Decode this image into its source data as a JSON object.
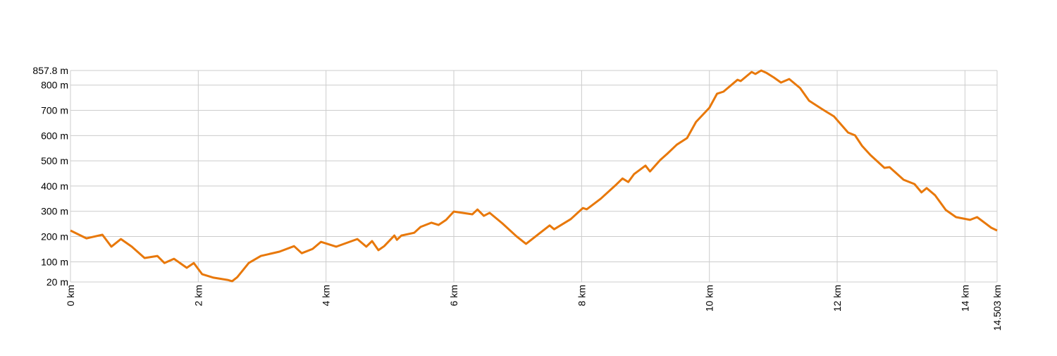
{
  "chart_data": {
    "type": "line",
    "title": "",
    "xlabel": "",
    "ylabel": "",
    "x_unit": "km",
    "y_unit": "m",
    "xlim": [
      0,
      14.503
    ],
    "ylim": [
      20,
      857.8
    ],
    "grid": true,
    "line_color": "#e8780a",
    "grid_color": "#cccccc",
    "x_ticks": [
      0,
      2,
      4,
      6,
      8,
      10,
      12,
      14,
      14.503
    ],
    "x_tick_labels": [
      "0 km",
      "2 km",
      "4 km",
      "6 km",
      "8 km",
      "10 km",
      "12 km",
      "14 km",
      "14.503 km"
    ],
    "y_ticks": [
      20,
      100,
      200,
      300,
      400,
      500,
      600,
      700,
      800,
      857.8
    ],
    "y_tick_labels": [
      "20 m",
      "100 m",
      "200 m",
      "300 m",
      "400 m",
      "500 m",
      "600 m",
      "700 m",
      "800 m",
      "857.8 m"
    ],
    "series": [
      {
        "x": [
          0,
          0.25,
          0.5,
          0.64,
          0.79,
          0.96,
          1.16,
          1.36,
          1.47,
          1.62,
          1.82,
          1.93,
          2.06,
          2.24,
          2.46,
          2.53,
          2.61,
          2.79,
          2.98,
          3.27,
          3.5,
          3.62,
          3.79,
          3.92,
          4.16,
          4.49,
          4.63,
          4.72,
          4.82,
          4.91,
          5.07,
          5.11,
          5.18,
          5.38,
          5.48,
          5.65,
          5.76,
          5.88,
          6.0,
          6.29,
          6.37,
          6.47,
          6.56,
          6.76,
          6.98,
          7.13,
          7.5,
          7.57,
          7.83,
          8.02,
          8.08,
          8.3,
          8.53,
          8.64,
          8.73,
          8.82,
          9.0,
          9.07,
          9.23,
          9.34,
          9.49,
          9.65,
          9.79,
          10.0,
          10.12,
          10.22,
          10.44,
          10.49,
          10.66,
          10.72,
          10.81,
          10.89,
          11.01,
          11.12,
          11.25,
          11.42,
          11.56,
          11.77,
          11.95,
          12.17,
          12.28,
          12.39,
          12.52,
          12.74,
          12.82,
          13.04,
          13.21,
          13.32,
          13.4,
          13.53,
          13.7,
          13.86,
          14.08,
          14.19,
          14.41,
          14.503
        ],
        "y": [
          224,
          193,
          207,
          160,
          190,
          160,
          115,
          123,
          95,
          112,
          76,
          95,
          51,
          37,
          28,
          23,
          39,
          95,
          123,
          140,
          162,
          134,
          151,
          179,
          160,
          190,
          160,
          182,
          146,
          162,
          204,
          187,
          204,
          215,
          238,
          255,
          246,
          266,
          299,
          288,
          307,
          282,
          294,
          252,
          201,
          171,
          244,
          229,
          269,
          313,
          308,
          350,
          403,
          430,
          416,
          447,
          481,
          458,
          503,
          528,
          564,
          590,
          654,
          710,
          766,
          774,
          821,
          816,
          852,
          844,
          857.8,
          849,
          830,
          810,
          824,
          788,
          738,
          704,
          676,
          612,
          601,
          559,
          523,
          472,
          475,
          425,
          408,
          375,
          392,
          364,
          305,
          277,
          266,
          277,
          235,
          224
        ]
      }
    ]
  }
}
